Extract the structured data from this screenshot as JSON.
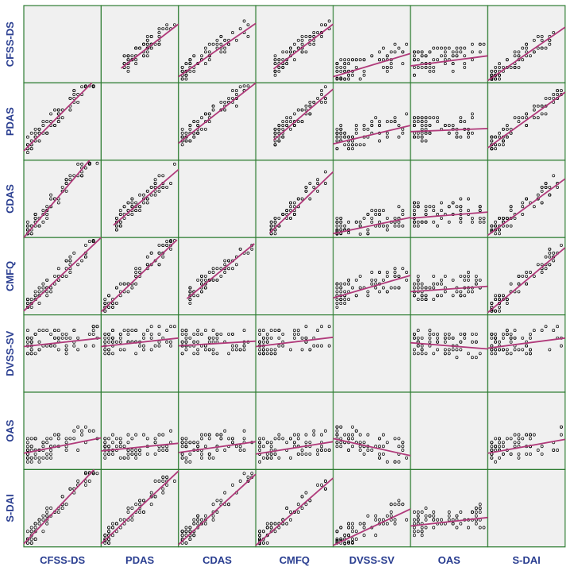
{
  "chart_data": {
    "type": "scatter",
    "title": "",
    "variables": [
      "CFSS-DS",
      "PDAS",
      "CDAS",
      "CMFQ",
      "DVSS-SV",
      "OAS",
      "S-DAI"
    ],
    "diagonal": "empty",
    "axis_ticks": "none",
    "grid": false,
    "legend": "none",
    "point_style": "open-circle",
    "fit_line": "linear",
    "ranges": {
      "CFSS-DS": [
        0,
        10
      ],
      "PDAS": [
        0,
        10
      ],
      "CDAS": [
        0,
        10
      ],
      "CMFQ": [
        0,
        10
      ],
      "DVSS-SV": [
        0,
        10
      ],
      "OAS": [
        0,
        10
      ],
      "S-DAI": [
        0,
        10
      ]
    },
    "fit_lines": [
      {
        "x": "PDAS",
        "y": "CFSS-DS",
        "x1": 2.6,
        "y1": 1.9,
        "x2": 10,
        "y2": 7.6
      },
      {
        "x": "CDAS",
        "y": "CFSS-DS",
        "x1": 0,
        "y1": 0.8,
        "x2": 10,
        "y2": 7.7
      },
      {
        "x": "CMFQ",
        "y": "CFSS-DS",
        "x1": 2.3,
        "y1": 1.8,
        "x2": 10,
        "y2": 7.6
      },
      {
        "x": "DVSS-SV",
        "y": "CFSS-DS",
        "x1": 0,
        "y1": 0.8,
        "x2": 10,
        "y2": 3.8
      },
      {
        "x": "OAS",
        "y": "CFSS-DS",
        "x1": 0,
        "y1": 2.2,
        "x2": 10,
        "y2": 3.5
      },
      {
        "x": "S-DAI",
        "y": "CFSS-DS",
        "x1": 0,
        "y1": 0.3,
        "x2": 10,
        "y2": 7.2
      },
      {
        "x": "CFSS-DS",
        "y": "PDAS",
        "x1": 0,
        "y1": 1.2,
        "x2": 8.8,
        "y2": 10
      },
      {
        "x": "CDAS",
        "y": "PDAS",
        "x1": 0,
        "y1": 2.2,
        "x2": 10,
        "y2": 10
      },
      {
        "x": "CMFQ",
        "y": "PDAS",
        "x1": 2.3,
        "y1": 2.6,
        "x2": 10,
        "y2": 9.2
      },
      {
        "x": "DVSS-SV",
        "y": "PDAS",
        "x1": 0,
        "y1": 2.1,
        "x2": 10,
        "y2": 4.5
      },
      {
        "x": "OAS",
        "y": "PDAS",
        "x1": 0,
        "y1": 3.7,
        "x2": 10,
        "y2": 4.1
      },
      {
        "x": "S-DAI",
        "y": "PDAS",
        "x1": 0,
        "y1": 1.6,
        "x2": 10,
        "y2": 8.8
      },
      {
        "x": "CFSS-DS",
        "y": "CDAS",
        "x1": 0,
        "y1": 0,
        "x2": 8.5,
        "y2": 10
      },
      {
        "x": "PDAS",
        "y": "CDAS",
        "x1": 1.6,
        "y1": 1.6,
        "x2": 10,
        "y2": 8.8
      },
      {
        "x": "CMFQ",
        "y": "CDAS",
        "x1": 1.8,
        "y1": 0.6,
        "x2": 10,
        "y2": 8.5
      },
      {
        "x": "DVSS-SV",
        "y": "CDAS",
        "x1": 0,
        "y1": 0.5,
        "x2": 10,
        "y2": 2.6
      },
      {
        "x": "OAS",
        "y": "CDAS",
        "x1": 0,
        "y1": 2.5,
        "x2": 10,
        "y2": 3.3
      },
      {
        "x": "S-DAI",
        "y": "CDAS",
        "x1": 0,
        "y1": 0.3,
        "x2": 10,
        "y2": 7.6
      },
      {
        "x": "CFSS-DS",
        "y": "CMFQ",
        "x1": 0,
        "y1": 0.5,
        "x2": 10,
        "y2": 10
      },
      {
        "x": "PDAS",
        "y": "CMFQ",
        "x1": 0,
        "y1": 0.4,
        "x2": 9.8,
        "y2": 9.7
      },
      {
        "x": "CDAS",
        "y": "CMFQ",
        "x1": 1.1,
        "y1": 2.1,
        "x2": 9.8,
        "y2": 9.2
      },
      {
        "x": "DVSS-SV",
        "y": "CMFQ",
        "x1": 0,
        "y1": 2.2,
        "x2": 10,
        "y2": 5.1
      },
      {
        "x": "OAS",
        "y": "CMFQ",
        "x1": 0,
        "y1": 3.0,
        "x2": 10,
        "y2": 3.7
      },
      {
        "x": "S-DAI",
        "y": "CMFQ",
        "x1": 0,
        "y1": 0.3,
        "x2": 10,
        "y2": 8.7
      },
      {
        "x": "CFSS-DS",
        "y": "DVSS-SV",
        "x1": 0,
        "y1": 5.9,
        "x2": 10,
        "y2": 7.0
      },
      {
        "x": "PDAS",
        "y": "DVSS-SV",
        "x1": 0,
        "y1": 5.9,
        "x2": 10,
        "y2": 7.0
      },
      {
        "x": "CDAS",
        "y": "DVSS-SV",
        "x1": 0,
        "y1": 6.0,
        "x2": 10,
        "y2": 6.6
      },
      {
        "x": "CMFQ",
        "y": "DVSS-SV",
        "x1": 0,
        "y1": 5.9,
        "x2": 10,
        "y2": 7.1
      },
      {
        "x": "OAS",
        "y": "DVSS-SV",
        "x1": 0,
        "y1": 6.4,
        "x2": 10,
        "y2": 5.6
      },
      {
        "x": "S-DAI",
        "y": "DVSS-SV",
        "x1": 0,
        "y1": 5.7,
        "x2": 10,
        "y2": 7.0
      },
      {
        "x": "CFSS-DS",
        "y": "OAS",
        "x1": 0,
        "y1": 2.1,
        "x2": 10,
        "y2": 4.1
      },
      {
        "x": "PDAS",
        "y": "OAS",
        "x1": 0,
        "y1": 2.4,
        "x2": 10,
        "y2": 3.4
      },
      {
        "x": "CDAS",
        "y": "OAS",
        "x1": 0,
        "y1": 2.2,
        "x2": 10,
        "y2": 3.6
      },
      {
        "x": "CMFQ",
        "y": "OAS",
        "x1": 0,
        "y1": 2.0,
        "x2": 10,
        "y2": 3.6
      },
      {
        "x": "DVSS-SV",
        "y": "OAS",
        "x1": 0,
        "y1": 4.0,
        "x2": 10,
        "y2": 1.8
      },
      {
        "x": "S-DAI",
        "y": "OAS",
        "x1": 0,
        "y1": 2.1,
        "x2": 10,
        "y2": 3.9
      },
      {
        "x": "CFSS-DS",
        "y": "S-DAI",
        "x1": 0,
        "y1": 0.4,
        "x2": 9.1,
        "y2": 10
      },
      {
        "x": "PDAS",
        "y": "S-DAI",
        "x1": 0,
        "y1": 0.4,
        "x2": 10,
        "y2": 9.8
      },
      {
        "x": "CDAS",
        "y": "S-DAI",
        "x1": 0,
        "y1": 0.3,
        "x2": 10,
        "y2": 9.4
      },
      {
        "x": "CMFQ",
        "y": "S-DAI",
        "x1": 0,
        "y1": 0.2,
        "x2": 10,
        "y2": 8.9
      },
      {
        "x": "DVSS-SV",
        "y": "S-DAI",
        "x1": 0,
        "y1": 0.2,
        "x2": 10,
        "y2": 4.9
      },
      {
        "x": "OAS",
        "y": "S-DAI",
        "x1": 0,
        "y1": 2.7,
        "x2": 10,
        "y2": 3.8
      }
    ],
    "colors": {
      "panel_background": "#f0f0f0",
      "panel_border": "#2e7d32",
      "fit_line": "#b03a7a",
      "points": "#000000",
      "label": "#2b3f91"
    }
  }
}
